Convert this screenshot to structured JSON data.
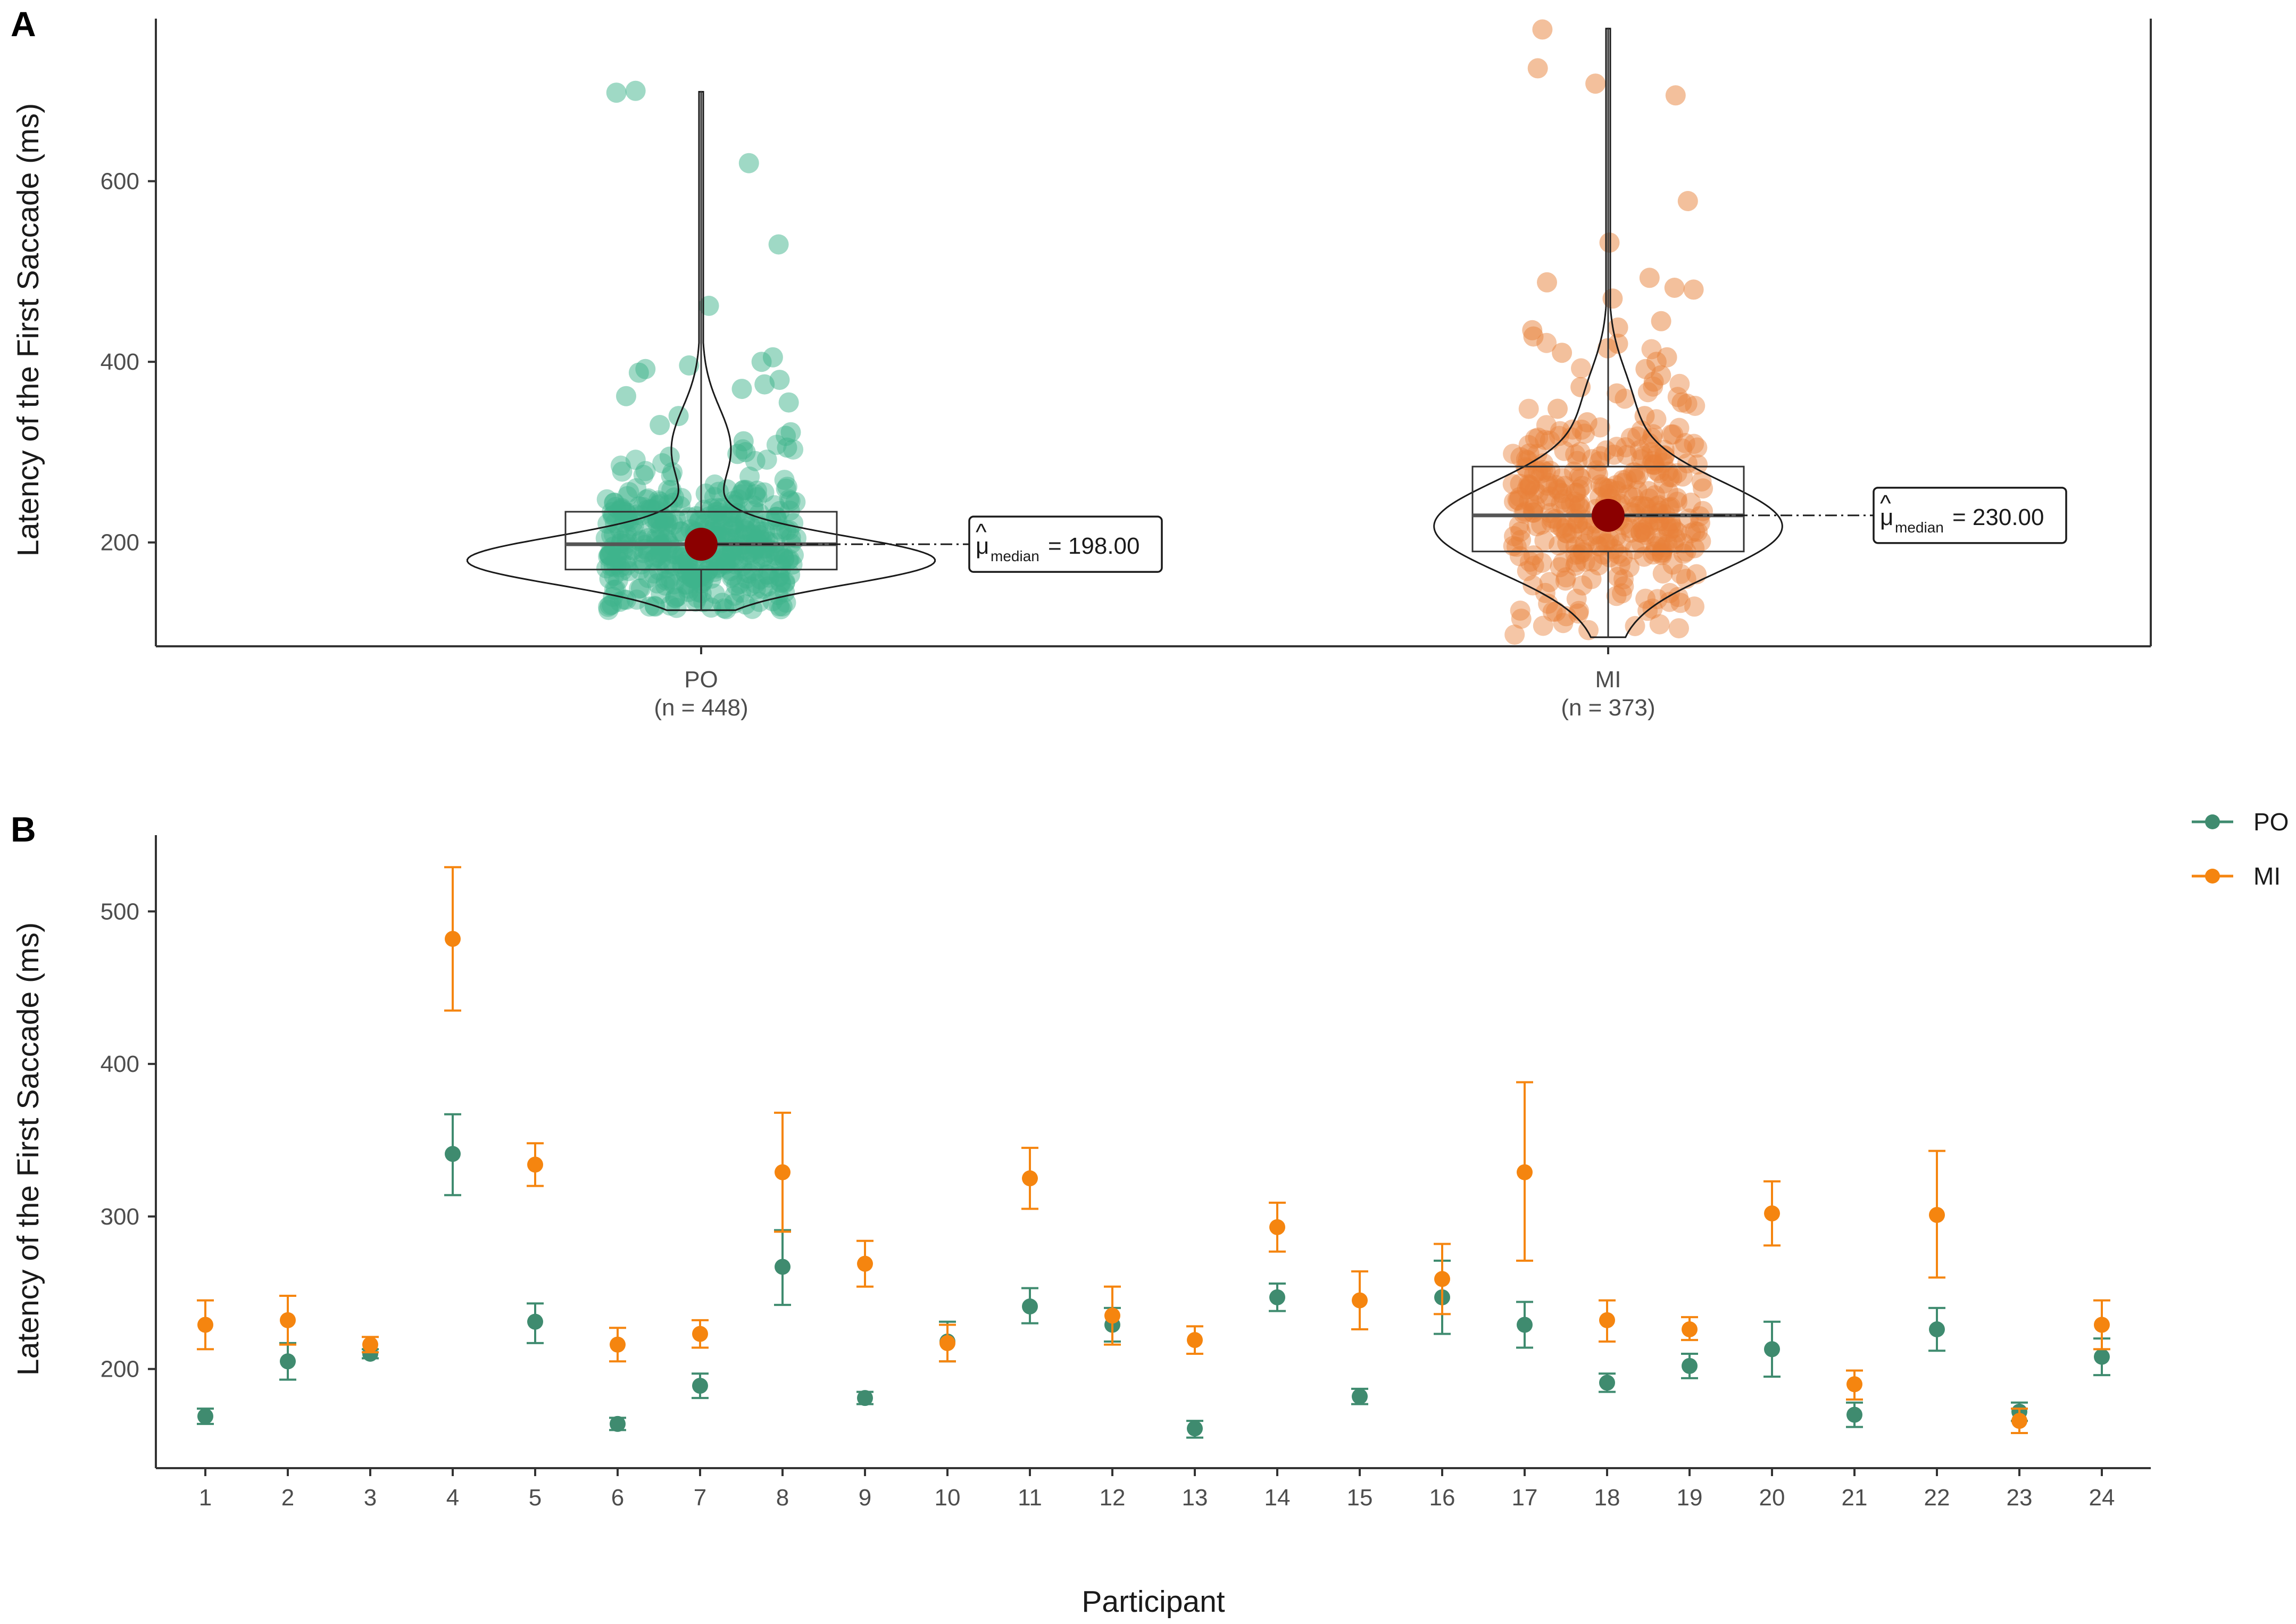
{
  "colors": {
    "po": "#3f8b6f",
    "mi": "#f5850f",
    "po_jitter": "#3fb48c",
    "mi_jitter": "#e8813a",
    "median_dot": "#8b0000"
  },
  "chart_data": [
    {
      "panel": "A",
      "type": "violin-box-jitter",
      "ylabel": "Latency of the First Saccade (ms)",
      "xlabel": "",
      "ylim": [
        85,
        780
      ],
      "yticks": [
        200,
        400,
        600
      ],
      "groups": [
        {
          "key": "po",
          "name": "PO",
          "n_label": "(n = 448)",
          "n": 448,
          "box": {
            "q1": 170,
            "median": 198,
            "q3": 234,
            "lower": 125,
            "upper": 700
          },
          "median_label": "= 198.00",
          "highlight_points": [
            700,
            698,
            620,
            530,
            462,
            405,
            400,
            396,
            392,
            388,
            380,
            375,
            370,
            362,
            355,
            340,
            330,
            322,
            318,
            312,
            305,
            300,
            298,
            295
          ]
        },
        {
          "key": "mi",
          "name": "MI",
          "n_label": "(n = 373)",
          "n": 373,
          "box": {
            "q1": 190,
            "median": 230,
            "q3": 284,
            "lower": 95,
            "upper": 770
          },
          "median_label": "= 230.00",
          "highlight_points": [
            768,
            725,
            708,
            695,
            578,
            532,
            493,
            488,
            482,
            480,
            470,
            445,
            438,
            435,
            428,
            420,
            415,
            410,
            405,
            400,
            392,
            385,
            378,
            372,
            365,
            355,
            348,
            340,
            333
          ]
        }
      ],
      "annotation_symbol": "μ",
      "annotation_subscript": "median"
    },
    {
      "panel": "B",
      "type": "pointrange",
      "title": "",
      "xlabel": "Participant",
      "ylabel": "Latency of the First Saccade (ms)",
      "ylim": [
        135,
        550
      ],
      "yticks": [
        200,
        300,
        400,
        500
      ],
      "categories": [
        "1",
        "2",
        "3",
        "4",
        "5",
        "6",
        "7",
        "8",
        "9",
        "10",
        "11",
        "12",
        "13",
        "14",
        "15",
        "16",
        "17",
        "18",
        "19",
        "20",
        "21",
        "22",
        "23",
        "24"
      ],
      "legend": [
        "PO",
        "MI"
      ],
      "series": [
        {
          "name": "PO",
          "values": [
            169,
            205,
            210,
            341,
            231,
            164,
            189,
            267,
            181,
            218,
            241,
            229,
            161,
            247,
            182,
            247,
            229,
            191,
            202,
            213,
            170,
            226,
            172,
            208
          ],
          "low": [
            164,
            193,
            207,
            314,
            217,
            160,
            181,
            242,
            177,
            205,
            230,
            218,
            155,
            238,
            177,
            223,
            214,
            185,
            194,
            195,
            162,
            212,
            166,
            196
          ],
          "high": [
            174,
            217,
            213,
            367,
            243,
            168,
            197,
            291,
            185,
            231,
            253,
            240,
            166,
            256,
            187,
            271,
            244,
            197,
            210,
            231,
            178,
            240,
            178,
            220
          ]
        },
        {
          "name": "MI",
          "values": [
            229,
            232,
            216,
            482,
            334,
            216,
            223,
            329,
            269,
            217,
            325,
            235,
            219,
            293,
            245,
            259,
            329,
            232,
            226,
            302,
            190,
            301,
            166,
            229
          ],
          "low": [
            213,
            216,
            211,
            435,
            320,
            205,
            214,
            290,
            254,
            205,
            305,
            216,
            210,
            277,
            226,
            236,
            271,
            218,
            219,
            281,
            180,
            260,
            158,
            213
          ],
          "high": [
            245,
            248,
            221,
            529,
            348,
            227,
            232,
            368,
            284,
            229,
            345,
            254,
            228,
            309,
            264,
            282,
            388,
            245,
            234,
            323,
            199,
            343,
            174,
            245
          ]
        }
      ]
    }
  ]
}
